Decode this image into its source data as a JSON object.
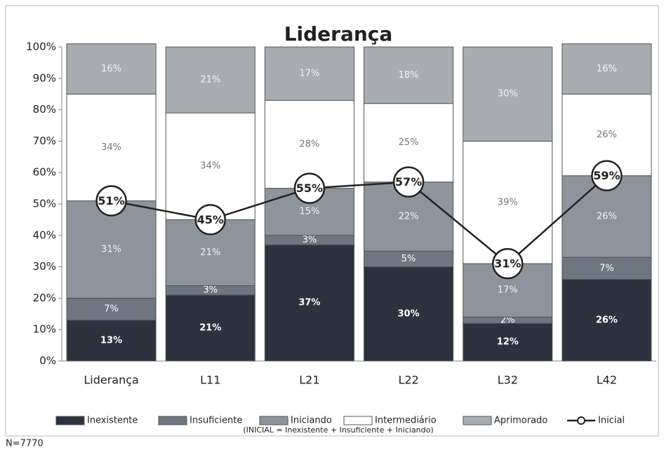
{
  "chart_data": {
    "type": "bar",
    "stacked": true,
    "title": "Liderança",
    "categories": [
      "Liderança",
      "L11",
      "L21",
      "L22",
      "L32",
      "L42"
    ],
    "series": [
      {
        "name": "Inexistente",
        "type": "bar",
        "color": "#2c323e",
        "values": [
          13,
          21,
          37,
          30,
          12,
          26
        ],
        "value_labels": [
          "13%",
          "21%",
          "37%",
          "30%",
          "12%",
          "26%"
        ]
      },
      {
        "name": "Insuficiente",
        "type": "bar",
        "color": "#6e7680",
        "values": [
          7,
          3,
          3,
          5,
          2,
          7
        ],
        "value_labels": [
          "7%",
          "3%",
          "3%",
          "5%",
          "2%",
          "7%"
        ]
      },
      {
        "name": "Iniciando",
        "type": "bar",
        "color": "#8e949b",
        "values": [
          31,
          21,
          15,
          22,
          17,
          26
        ],
        "value_labels": [
          "31%",
          "21%",
          "15%",
          "22%",
          "17%",
          "26%"
        ]
      },
      {
        "name": "Intermediário",
        "type": "bar",
        "color": "#ffffff",
        "values": [
          34,
          34,
          28,
          25,
          39,
          26
        ],
        "value_labels": [
          "34%",
          "34%",
          "28%",
          "25%",
          "39%",
          "26%"
        ]
      },
      {
        "name": "Aprimorado",
        "type": "bar",
        "color": "#a9adb2",
        "values": [
          16,
          21,
          17,
          18,
          30,
          16
        ],
        "value_labels": [
          "16%",
          "21%",
          "17%",
          "18%",
          "30%",
          "16%"
        ]
      },
      {
        "name": "Inicial",
        "type": "line",
        "color": "#222222",
        "values": [
          51,
          45,
          55,
          57,
          31,
          59
        ],
        "value_labels": [
          "51%",
          "45%",
          "55%",
          "57%",
          "31%",
          "59%"
        ]
      }
    ],
    "ylim": [
      0,
      100
    ],
    "yticks": [
      {
        "value": 0,
        "label": "0%"
      },
      {
        "value": 10,
        "label": "10%"
      },
      {
        "value": 20,
        "label": "20%"
      },
      {
        "value": 30,
        "label": "30%"
      },
      {
        "value": 40,
        "label": "40%"
      },
      {
        "value": 50,
        "label": "50%"
      },
      {
        "value": 60,
        "label": "60%"
      },
      {
        "value": 70,
        "label": "70%"
      },
      {
        "value": 80,
        "label": "80%"
      },
      {
        "value": 90,
        "label": "90%"
      },
      {
        "value": 100,
        "label": "100%"
      }
    ],
    "grid": false,
    "legend": "bottom",
    "annotation": "(INICIAL = Inexistente + Insuficiente + Iniciando)",
    "note": "N=7770"
  }
}
